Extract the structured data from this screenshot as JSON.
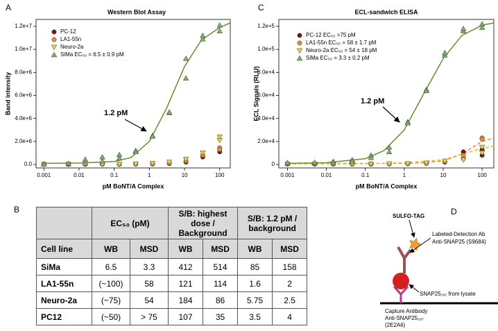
{
  "chart_data": [
    {
      "type": "scatter",
      "panel": "A",
      "title": "Western Blot Assay",
      "xlabel": "pM BoNT/A Complex",
      "ylabel": "Band intensity",
      "xscale": "log",
      "xlim": [
        0.0006,
        200
      ],
      "xticks": [
        0.001,
        0.01,
        0.1,
        1,
        10,
        100
      ],
      "ylim": [
        -300000,
        12600000
      ],
      "yticks": [
        {
          "value": 0,
          "label": "0.0"
        },
        {
          "value": 2000000,
          "label": "2.0e+6"
        },
        {
          "value": 4000000,
          "label": "4.0e+6"
        },
        {
          "value": 6000000,
          "label": "6.0e+6"
        },
        {
          "value": 8000000,
          "label": "8.0e+6"
        },
        {
          "value": 10000000,
          "label": "1.0e+7"
        },
        {
          "value": 12000000,
          "label": "1.2e+7"
        }
      ],
      "legend": "upper left",
      "annotation": "1.2 pM",
      "series": [
        {
          "name": "PC-12",
          "color": "#6b1a1a",
          "marker": "circle",
          "x": [
            0.001,
            0.005,
            0.015,
            0.046,
            0.14,
            0.41,
            1.23,
            3.7,
            11,
            33,
            100,
            100
          ],
          "values": [
            20000,
            10000,
            30000,
            20000,
            10000,
            30000,
            40000,
            80000,
            200000,
            650000,
            1100000,
            1300000
          ]
        },
        {
          "name": "LA1-55n",
          "color": "#e8893a",
          "marker": "circle",
          "x": [
            0.001,
            0.005,
            0.015,
            0.046,
            0.14,
            0.41,
            1.23,
            3.7,
            11,
            33,
            100,
            100
          ],
          "values": [
            30000,
            20000,
            10000,
            30000,
            20000,
            40000,
            60000,
            120000,
            300000,
            800000,
            1450000,
            1300000
          ]
        },
        {
          "name": "Neuro-2a",
          "color": "#e3d547",
          "marker": "triangle-down",
          "x": [
            0.001,
            0.005,
            0.015,
            0.046,
            0.14,
            0.41,
            1.23,
            3.7,
            11,
            33,
            100,
            100
          ],
          "values": [
            10000,
            30000,
            20000,
            10000,
            30000,
            50000,
            100000,
            200000,
            450000,
            1000000,
            2400000,
            2100000
          ]
        },
        {
          "name": "SiMa EC₅₀ = 6.5 ± 0.9 pM",
          "color": "#7fb070",
          "marker": "triangle-up",
          "x": [
            0.001,
            0.001,
            0.005,
            0.005,
            0.015,
            0.015,
            0.046,
            0.046,
            0.14,
            0.14,
            0.41,
            0.41,
            1.23,
            1.23,
            3.7,
            3.7,
            11,
            11,
            33,
            33,
            100,
            100
          ],
          "values": [
            50000,
            30000,
            60000,
            90000,
            450000,
            100000,
            650000,
            300000,
            850000,
            550000,
            1200000,
            1100000,
            2500000,
            2450000,
            4500000,
            4550000,
            9200000,
            7500000,
            10900000,
            11200000,
            12100000,
            11600000
          ],
          "fit": {
            "color": "#6b8a2e",
            "dashed": false,
            "x": [
              0.001,
              0.01,
              0.1,
              0.3,
              1,
              3,
              10,
              30,
              100,
              200
            ],
            "values": [
              100000,
              120000,
              260000,
              600000,
              2000000,
              4800000,
              8500000,
              10800000,
              11900000,
              12300000
            ]
          }
        }
      ]
    },
    {
      "type": "scatter",
      "panel": "C",
      "title": "ECL-sandwich ELISA",
      "xlabel": "pM BoNT/A Complex",
      "ylabel": "ECL Signals (RLU)",
      "xscale": "log",
      "xlim": [
        0.0006,
        200
      ],
      "xticks": [
        0.001,
        0.01,
        0.1,
        1,
        10,
        100
      ],
      "ylim": [
        -3000,
        126000
      ],
      "yticks": [
        0,
        {
          "value": 20000,
          "label": "2.0e+4"
        },
        {
          "value": 40000,
          "label": "4.0e+4"
        },
        {
          "value": 60000,
          "label": "6.0e+4"
        },
        {
          "value": 80000,
          "label": "8.0e+4"
        },
        {
          "value": 100000,
          "label": "1.0e+5"
        },
        {
          "value": 120000,
          "label": "1.2e+5"
        }
      ],
      "legend": "upper left",
      "annotation": "1.2 pM",
      "series": [
        {
          "name": "PC-12 EC₅₀ >75 pM",
          "color": "#6b1a1a",
          "marker": "circle",
          "x": [
            0.001,
            0.005,
            0.015,
            0.046,
            0.14,
            0.41,
            1.23,
            3.7,
            11,
            33,
            33,
            100,
            100
          ],
          "values": [
            500,
            300,
            200,
            400,
            300,
            500,
            600,
            1000,
            2000,
            11000,
            5000,
            13000,
            8000
          ]
        },
        {
          "name": "LA1-55n EC₅₀ = 58 ± 1.7 pM",
          "color": "#e8893a",
          "marker": "circle",
          "x": [
            0.001,
            0.005,
            0.015,
            0.046,
            0.14,
            0.41,
            1.23,
            3.7,
            11,
            33,
            100,
            100
          ],
          "values": [
            400,
            500,
            300,
            200,
            600,
            400,
            700,
            900,
            2500,
            8000,
            23000,
            22000
          ],
          "fit": {
            "color": "#e8893a",
            "dashed": true,
            "x": [
              0.001,
              0.1,
              1,
              3,
              10,
              30,
              100,
              200
            ],
            "values": [
              800,
              900,
              1000,
              1500,
              3000,
              9000,
              20000,
              23000
            ]
          }
        },
        {
          "name": "Neuro-2a EC₅₀ = 54 ± 18 pM",
          "color": "#e3d547",
          "marker": "triangle-down",
          "x": [
            0.001,
            0.005,
            0.015,
            0.046,
            0.14,
            0.41,
            1.23,
            3.7,
            11,
            33,
            100,
            100
          ],
          "values": [
            300,
            200,
            400,
            500,
            300,
            600,
            800,
            1200,
            3000,
            4000,
            15000,
            10000
          ],
          "fit": {
            "color": "#e0c020",
            "dashed": true,
            "x": [
              0.001,
              0.1,
              1,
              10,
              30,
              100,
              200
            ],
            "values": [
              500,
              700,
              1500,
              4000,
              9000,
              14000,
              16000
            ]
          }
        },
        {
          "name": "SiMa EC₅₀ = 3.3 ± 0.2 pM",
          "color": "#7fb070",
          "marker": "triangle-up",
          "x": [
            0.001,
            0.001,
            0.005,
            0.005,
            0.015,
            0.015,
            0.046,
            0.046,
            0.14,
            0.14,
            0.41,
            0.41,
            1.23,
            1.23,
            3.7,
            3.7,
            11,
            11,
            33,
            33,
            100,
            100
          ],
          "values": [
            1000,
            1500,
            1200,
            1800,
            2500,
            1500,
            4000,
            3000,
            8000,
            6000,
            15000,
            11000,
            37000,
            36000,
            65000,
            64000,
            95000,
            97000,
            116000,
            118000,
            122000,
            119000
          ],
          "fit": {
            "color": "#6b8a2e",
            "dashed": false,
            "x": [
              0.001,
              0.01,
              0.1,
              0.3,
              1,
              3,
              10,
              30,
              100,
              200
            ],
            "values": [
              1000,
              1500,
              5000,
              12000,
              30000,
              60000,
              92000,
              112000,
              121000,
              123000
            ]
          }
        }
      ]
    }
  ],
  "table": {
    "label": "B",
    "groups": [
      "EC₅₀ (pM)",
      "S/B: highest dose / Background",
      "S/B: 1.2 pM / background"
    ],
    "columns": [
      "Cell line",
      "WB",
      "MSD",
      "WB",
      "MSD",
      "WB",
      "MSD"
    ],
    "rows": [
      [
        "SiMa",
        6.5,
        3.3,
        412,
        514,
        85,
        158
      ],
      [
        "LA1-55n",
        "(~100)",
        58,
        121,
        114,
        1.6,
        2
      ],
      [
        "Neuro-2a",
        "(~75)",
        54,
        184,
        86,
        5.75,
        2.5
      ],
      [
        "PC12",
        "(~50)",
        "> 75",
        107,
        35,
        3.5,
        4
      ]
    ]
  },
  "diagram": {
    "label": "D",
    "tag": "SULFO-TAG",
    "detection": [
      "Labeled-Detection Ab",
      "Anti-SNAP25 (S9684)"
    ],
    "antigen": "SNAP25₁₉₇ from lysate",
    "capture": [
      "Capture Antibody",
      "Anti-SNAP25₁₉₇",
      "(2E2A6)"
    ]
  }
}
